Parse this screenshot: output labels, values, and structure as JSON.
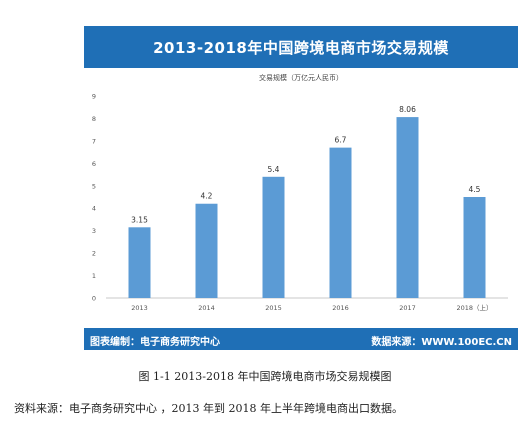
{
  "header": {
    "title": "2013-2018年中国跨境电商市场交易规模"
  },
  "footer": {
    "left": "图表编制：电子商务研究中心",
    "right": "数据来源：WWW.100EC.CN"
  },
  "caption": "图 1-1    2013-2018 年中国跨境电商市场交易规模图",
  "source": "资料来源：电子商务研究中心 ，2013 年到 2018 年上半年跨境电商出口数据。",
  "colors": {
    "header": "#1f6fb6",
    "bar": "#5b9bd5"
  },
  "chart_data": {
    "type": "bar",
    "title": "交易规模（万亿元人民币）",
    "categories": [
      "2013",
      "2014",
      "2015",
      "2016",
      "2017",
      "2018（上）"
    ],
    "values": [
      3.15,
      4.2,
      5.4,
      6.7,
      8.06,
      4.5
    ],
    "value_labels": [
      "3.15",
      "4.2",
      "5.4",
      "6.7",
      "8.06",
      "4.5"
    ],
    "yticks": [
      "0",
      "1",
      "2",
      "3",
      "4",
      "5",
      "6",
      "7",
      "8",
      "9"
    ],
    "ylim": [
      0,
      9
    ],
    "grid": false,
    "legend": "none"
  }
}
